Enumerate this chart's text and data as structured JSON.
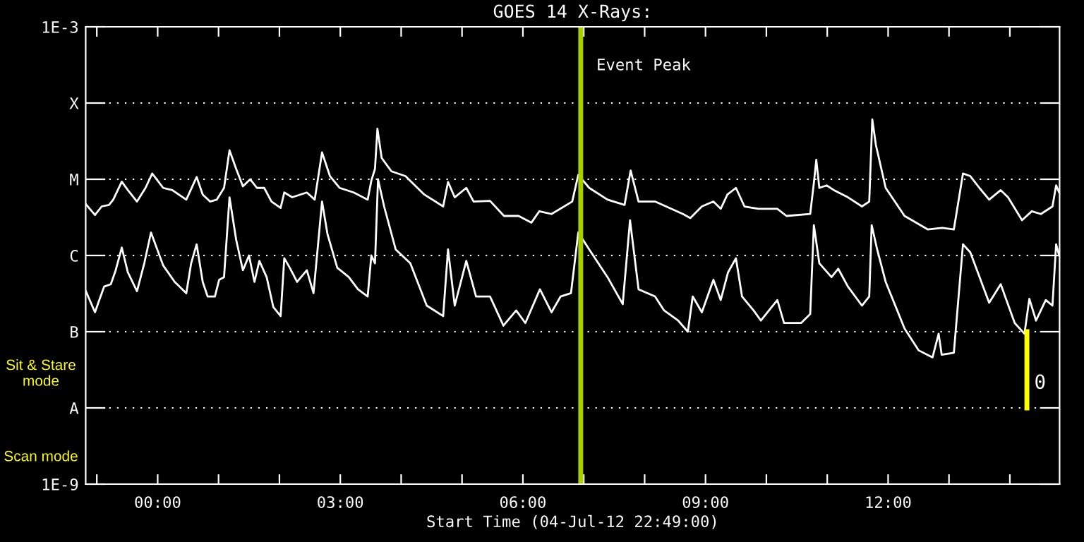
{
  "chart_data": {
    "type": "line",
    "title": "GOES 14 X-Rays:",
    "xlabel": "Start Time (04-Jul-12 22:49:00)",
    "log": "y",
    "grid": "y",
    "line_style": "solid",
    "marker": "none",
    "xlim": [
      -1.183,
      14.817
    ],
    "ylim": [
      1e-09,
      0.001
    ],
    "xticks": [
      {
        "value": -1,
        "label": null
      },
      {
        "value": 0,
        "label": "00:00"
      },
      {
        "value": 1,
        "label": null
      },
      {
        "value": 2,
        "label": null
      },
      {
        "value": 3,
        "label": "03:00"
      },
      {
        "value": 4,
        "label": null
      },
      {
        "value": 5,
        "label": null
      },
      {
        "value": 6,
        "label": "06:00"
      },
      {
        "value": 7,
        "label": null
      },
      {
        "value": 8,
        "label": null
      },
      {
        "value": 9,
        "label": "09:00"
      },
      {
        "value": 10,
        "label": null
      },
      {
        "value": 11,
        "label": null
      },
      {
        "value": 12,
        "label": "12:00"
      },
      {
        "value": 13,
        "label": null
      },
      {
        "value": 14,
        "label": null
      }
    ],
    "yticks": [
      {
        "value": 1e-09,
        "label": "1E-9"
      },
      {
        "value": 1e-08,
        "label": "A"
      },
      {
        "value": 1e-07,
        "label": "B"
      },
      {
        "value": 1e-06,
        "label": "C"
      },
      {
        "value": 1e-05,
        "label": "M"
      },
      {
        "value": 0.0001,
        "label": "X"
      },
      {
        "value": 0.001,
        "label": "1E-3"
      }
    ],
    "series": [
      {
        "color": "#ffffff",
        "x": [
          -1.18,
          -1.03,
          -0.92,
          -0.8,
          -0.73,
          -0.59,
          -0.49,
          -0.34,
          -0.2,
          -0.09,
          0.09,
          0.24,
          0.47,
          0.64,
          0.74,
          0.86,
          0.97,
          1.09,
          1.18,
          1.29,
          1.4,
          1.52,
          1.63,
          1.75,
          1.87,
          2.02,
          2.08,
          2.21,
          2.45,
          2.58,
          2.7,
          2.83,
          2.99,
          3.22,
          3.45,
          3.51,
          3.57,
          3.61,
          3.68,
          3.84,
          4.07,
          4.38,
          4.69,
          4.77,
          4.88,
          5.07,
          5.19,
          5.46,
          5.69,
          5.93,
          6.14,
          6.27,
          6.47,
          6.81,
          6.91,
          7.09,
          7.39,
          7.67,
          7.77,
          7.9,
          8.17,
          8.63,
          8.75,
          8.94,
          9.13,
          9.25,
          9.36,
          9.5,
          9.64,
          9.87,
          10.18,
          10.33,
          10.72,
          10.78,
          10.82,
          10.87,
          10.99,
          11.11,
          11.34,
          11.57,
          11.69,
          11.74,
          11.8,
          11.96,
          12.27,
          12.65,
          12.89,
          13.08,
          13.23,
          13.35,
          13.5,
          13.66,
          13.85,
          13.97,
          14.2,
          14.36,
          14.51,
          14.7,
          14.76,
          14.81
        ],
        "values": [
          4.7e-06,
          3.4e-06,
          4.4e-06,
          4.6e-06,
          5.4e-06,
          9.3e-06,
          7.2e-06,
          5.1e-06,
          7.7e-06,
          1.19e-05,
          7.7e-06,
          7.2e-06,
          5.4e-06,
          1.07e-05,
          6.3e-06,
          5.1e-06,
          5.4e-06,
          7.7e-06,
          2.4e-05,
          1.36e-05,
          8.1e-06,
          1e-05,
          7.7e-06,
          7.7e-06,
          5.1e-06,
          4.2e-06,
          6.7e-06,
          5.8e-06,
          6.7e-06,
          5.4e-06,
          2.25e-05,
          1.1e-05,
          7.7e-06,
          6.7e-06,
          5.4e-06,
          9.6e-06,
          1.37e-05,
          4.6e-05,
          1.9e-05,
          1.27e-05,
          1.1e-05,
          6.3e-06,
          4.4e-06,
          9.2e-06,
          5.8e-06,
          7.7e-06,
          5.1e-06,
          5.2e-06,
          3.3e-06,
          3.3e-06,
          2.7e-06,
          3.8e-06,
          3.5e-06,
          5.1e-06,
          1.14e-05,
          7.7e-06,
          5.4e-06,
          4.6e-06,
          1.3e-05,
          5.1e-06,
          5.1e-06,
          3.5e-06,
          3.1e-06,
          4.4e-06,
          5.1e-06,
          4.1e-06,
          6.3e-06,
          7.7e-06,
          4.4e-06,
          4.1e-06,
          4.1e-06,
          3.3e-06,
          3.5e-06,
          8.9e-06,
          1.8e-05,
          7.7e-06,
          8.3e-06,
          7.2e-06,
          5.8e-06,
          4.4e-06,
          5.1e-06,
          6.1e-05,
          2.8e-05,
          7.7e-06,
          3.3e-06,
          2.2e-06,
          2.3e-06,
          2.2e-06,
          1.19e-05,
          1.1e-05,
          7.7e-06,
          5.4e-06,
          7.2e-06,
          5.8e-06,
          2.9e-06,
          3.8e-06,
          3.5e-06,
          4.4e-06,
          8.3e-06,
          6.7e-06
        ]
      },
      {
        "color": "#ffffff",
        "x": [
          -1.18,
          -1.03,
          -0.96,
          -0.88,
          -0.77,
          -0.69,
          -0.59,
          -0.49,
          -0.34,
          -0.22,
          -0.11,
          0.09,
          0.28,
          0.47,
          0.55,
          0.64,
          0.74,
          0.82,
          0.94,
          1.01,
          1.09,
          1.18,
          1.29,
          1.4,
          1.5,
          1.59,
          1.67,
          1.79,
          1.9,
          2.02,
          2.08,
          2.17,
          2.29,
          2.45,
          2.56,
          2.7,
          2.79,
          2.95,
          3.14,
          3.29,
          3.45,
          3.51,
          3.57,
          3.62,
          3.72,
          3.91,
          4.15,
          4.42,
          4.69,
          4.77,
          4.88,
          5.07,
          5.23,
          5.46,
          5.68,
          5.89,
          6.04,
          6.28,
          6.47,
          6.62,
          6.79,
          6.91,
          7.09,
          7.39,
          7.64,
          7.76,
          7.9,
          8.17,
          8.32,
          8.55,
          8.71,
          8.79,
          8.94,
          9.13,
          9.25,
          9.37,
          9.5,
          9.6,
          9.79,
          9.91,
          10.18,
          10.29,
          10.57,
          10.72,
          10.78,
          10.87,
          11.07,
          11.18,
          11.34,
          11.57,
          11.69,
          11.73,
          11.82,
          11.96,
          12.27,
          12.5,
          12.73,
          12.83,
          12.88,
          13.08,
          13.23,
          13.35,
          13.66,
          13.85,
          14.08,
          14.24,
          14.32,
          14.43,
          14.59,
          14.7,
          14.76,
          14.81
        ],
        "values": [
          3.4e-07,
          1.8e-07,
          2.6e-07,
          3.9e-07,
          4.2e-07,
          6.4e-07,
          1.27e-06,
          6e-07,
          3.4e-07,
          7.9e-07,
          2e-06,
          7.4e-07,
          4.5e-07,
          3.2e-07,
          7.9e-07,
          1.4e-06,
          4.5e-07,
          2.9e-07,
          2.9e-07,
          4.8e-07,
          5.2e-07,
          5.8e-06,
          1.6e-06,
          6.4e-07,
          1e-06,
          4.5e-07,
          8.5e-07,
          5.2e-07,
          2.1e-07,
          1.6e-07,
          9.2e-07,
          6.9e-07,
          4.5e-07,
          6.4e-07,
          3.2e-07,
          5.1e-06,
          1.9e-06,
          6.9e-07,
          5.2e-07,
          3.6e-07,
          2.9e-07,
          1e-06,
          7.9e-07,
          1e-05,
          4.4e-06,
          1.2e-06,
          7.9e-07,
          2.2e-07,
          1.6e-07,
          1.2e-06,
          2.2e-07,
          8.5e-07,
          2.9e-07,
          2.9e-07,
          1.2e-07,
          1.9e-07,
          1.3e-07,
          3.6e-07,
          1.8e-07,
          2.9e-07,
          3.2e-07,
          2e-06,
          1.2e-06,
          5.2e-07,
          2.3e-07,
          2.9e-06,
          3.6e-07,
          2.9e-07,
          1.9e-07,
          1.4e-07,
          1e-07,
          2.9e-07,
          1.8e-07,
          4.8e-07,
          2.6e-07,
          6e-07,
          9.2e-07,
          2.9e-07,
          1.9e-07,
          1.4e-07,
          2.6e-07,
          1.3e-07,
          1.3e-07,
          1.7e-07,
          2.5e-06,
          7.9e-07,
          5.2e-07,
          6.7e-07,
          3.9e-07,
          2.2e-07,
          2.9e-07,
          2.5e-06,
          1.2e-06,
          4.5e-07,
          1.1e-07,
          5.7e-08,
          4.6e-08,
          9.4e-08,
          5e-08,
          5.3e-08,
          1.4e-06,
          1.1e-06,
          2.4e-07,
          4.2e-07,
          1.3e-07,
          9.4e-08,
          2.7e-07,
          1.4e-07,
          2.6e-07,
          2.2e-07,
          1.4e-06,
          1e-06
        ]
      },
      {
        "color": "#ffff00",
        "x": [
          14.28,
          14.28
        ],
        "values": [
          1e-08,
          1e-07
        ]
      }
    ],
    "ref_lines": [
      {
        "axis": "x",
        "value": 6.95,
        "label": "Event Peak",
        "color": "#a8d000"
      }
    ],
    "annotations": [
      "Sit & Stare\nmode",
      "Scan mode",
      {
        "text": "0",
        "x": 14.4,
        "y": 2.1e-08
      }
    ]
  }
}
